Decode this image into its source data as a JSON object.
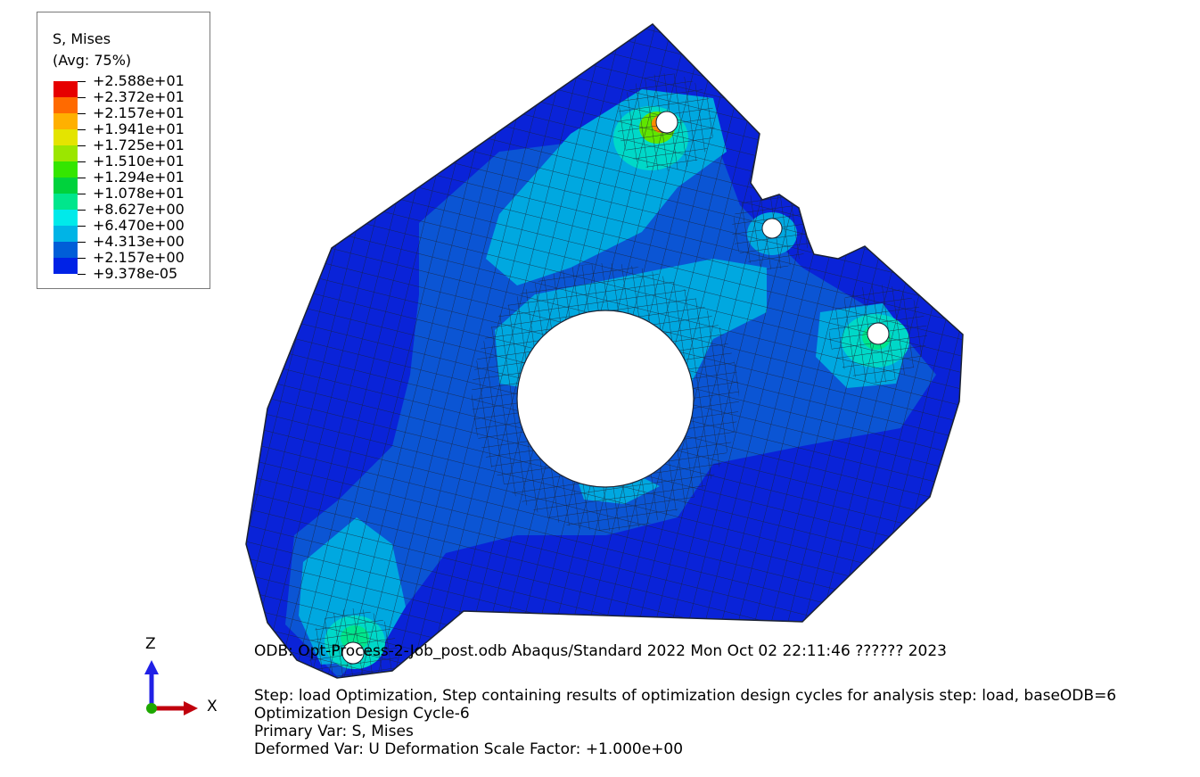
{
  "legend": {
    "title": "S, Mises",
    "subtitle": "(Avg: 75%)",
    "levels": [
      {
        "label": "+2.588e+01",
        "color": "#e60000"
      },
      {
        "label": "+2.372e+01",
        "color": "#ff6a00"
      },
      {
        "label": "+2.157e+01",
        "color": "#ffb000"
      },
      {
        "label": "+1.941e+01",
        "color": "#e4e400"
      },
      {
        "label": "+1.725e+01",
        "color": "#9be600"
      },
      {
        "label": "+1.510e+01",
        "color": "#34e600"
      },
      {
        "label": "+1.294e+01",
        "color": "#00d23c"
      },
      {
        "label": "+1.078e+01",
        "color": "#00e68c"
      },
      {
        "label": "+8.627e+00",
        "color": "#00eaea"
      },
      {
        "label": "+6.470e+00",
        "color": "#00b4e6"
      },
      {
        "label": "+4.313e+00",
        "color": "#005ed8"
      },
      {
        "label": "+2.157e+00",
        "color": "#0022e6"
      },
      {
        "label": "+9.378e-05",
        "color": "#0022e6"
      }
    ]
  },
  "model": {
    "colors": {
      "base": "#0a23d8",
      "mid": "#0b55d4",
      "light": "#00a8e0",
      "cyan": "#00d8c8",
      "hot": "#e63300",
      "mesh": "#1b2233"
    }
  },
  "triad": {
    "z_label": "Z",
    "x_label": "X",
    "z_color": "#2020e6",
    "x_color": "#c0000c",
    "y_color": "#1ea800"
  },
  "info": {
    "line1": "ODB: Opt-Process-2-Job_post.odb    Abaqus/Standard 2022    Mon Oct 02 22:11:46 ?????? 2023",
    "line2": "Step: load  Optimization, Step containing results of optimization design cycles for analysis step: load, baseODB=6",
    "line3": "Optimization Design Cycle-6",
    "line4": "Primary Var: S, Mises",
    "line5": "Deformed Var: U   Deformation Scale Factor: +1.000e+00"
  }
}
